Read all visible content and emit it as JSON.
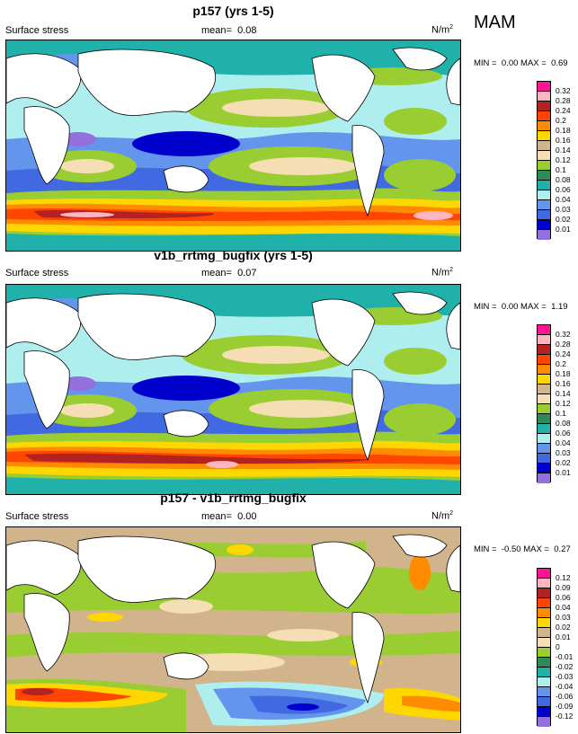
{
  "season": "MAM",
  "panels": [
    {
      "title": "p157 (yrs 1-5)",
      "variable": "Surface stress",
      "mean_label": "mean=",
      "mean_value": "0.08",
      "units_base": "N/m",
      "units_exp": "2",
      "min_label": "MIN =",
      "min_value": "0.00",
      "max_label": "MAX =",
      "max_value": "0.69",
      "colorbar": {
        "labels": [
          "0.32",
          "0.28",
          "0.24",
          "0.2",
          "0.18",
          "0.16",
          "0.14",
          "0.12",
          "0.1",
          "0.08",
          "0.06",
          "0.04",
          "0.03",
          "0.02",
          "0.01"
        ],
        "colors": [
          "#ff1493",
          "#ffb6c1",
          "#b22222",
          "#ff4500",
          "#ff8c00",
          "#ffd700",
          "#d2b48c",
          "#f5deb3",
          "#9acd32",
          "#2e8b57",
          "#20b2aa",
          "#afeeee",
          "#6495ed",
          "#4169e1",
          "#0000cd",
          "#9370db"
        ]
      }
    },
    {
      "title": "v1b_rrtmg_bugfix (yrs 1-5)",
      "variable": "Surface stress",
      "mean_label": "mean=",
      "mean_value": "0.07",
      "units_base": "N/m",
      "units_exp": "2",
      "min_label": "MIN =",
      "min_value": "0.00",
      "max_label": "MAX =",
      "max_value": "1.19",
      "colorbar": {
        "labels": [
          "0.32",
          "0.28",
          "0.24",
          "0.2",
          "0.18",
          "0.16",
          "0.14",
          "0.12",
          "0.1",
          "0.08",
          "0.06",
          "0.04",
          "0.03",
          "0.02",
          "0.01"
        ],
        "colors": [
          "#ff1493",
          "#ffb6c1",
          "#b22222",
          "#ff4500",
          "#ff8c00",
          "#ffd700",
          "#d2b48c",
          "#f5deb3",
          "#9acd32",
          "#2e8b57",
          "#20b2aa",
          "#afeeee",
          "#6495ed",
          "#4169e1",
          "#0000cd",
          "#9370db"
        ]
      }
    },
    {
      "title": "p157 - v1b_rrtmg_bugfix",
      "variable": "Surface stress",
      "mean_label": "mean=",
      "mean_value": "0.00",
      "units_base": "N/m",
      "units_exp": "2",
      "min_label": "MIN =",
      "min_value": "-0.50",
      "max_label": "MAX =",
      "max_value": "0.27",
      "colorbar": {
        "labels": [
          "0.12",
          "0.09",
          "0.06",
          "0.04",
          "0.03",
          "0.02",
          "0.01",
          "0",
          "-0.01",
          "-0.02",
          "-0.03",
          "-0.04",
          "-0.06",
          "-0.09",
          "-0.12"
        ],
        "colors": [
          "#ff1493",
          "#ffb6c1",
          "#b22222",
          "#ff4500",
          "#ff8c00",
          "#ffd700",
          "#d2b48c",
          "#f5deb3",
          "#9acd32",
          "#2e8b57",
          "#20b2aa",
          "#afeeee",
          "#6495ed",
          "#4169e1",
          "#0000cd",
          "#9370db"
        ]
      }
    }
  ]
}
